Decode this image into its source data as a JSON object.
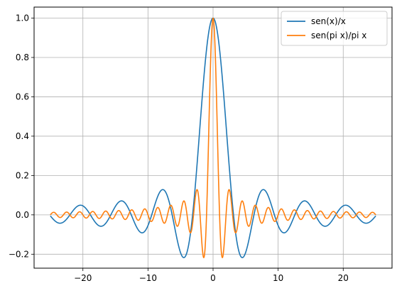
{
  "chart_data": {
    "type": "line",
    "title": "",
    "xlabel": "",
    "ylabel": "",
    "x_domain": [
      -25,
      25
    ],
    "xlim": [
      -27.5,
      27.5
    ],
    "ylim": [
      -0.271,
      1.056
    ],
    "grid": true,
    "legend_position": "top-right",
    "x_ticks": [
      -20,
      -10,
      0,
      10,
      20
    ],
    "x_tick_labels": [
      "−20",
      "−10",
      "0",
      "10",
      "20"
    ],
    "y_ticks": [
      -0.2,
      0.0,
      0.2,
      0.4,
      0.6,
      0.8,
      1.0
    ],
    "y_tick_labels": [
      "−0.2",
      "0.0",
      "0.2",
      "0.4",
      "0.6",
      "0.8",
      "1.0"
    ],
    "series": [
      {
        "name": "sen(x)/x",
        "function": "sin(x)/x",
        "color": "#1f77b4"
      },
      {
        "name": "sen(pi x)/pi x",
        "function": "sin(pi*x)/(pi*x)",
        "color": "#ff7f0e"
      }
    ]
  },
  "legend": {
    "items": [
      {
        "label": "sen(x)/x",
        "color": "#1f77b4"
      },
      {
        "label": "sen(pi x)/pi x",
        "color": "#ff7f0e"
      }
    ]
  }
}
